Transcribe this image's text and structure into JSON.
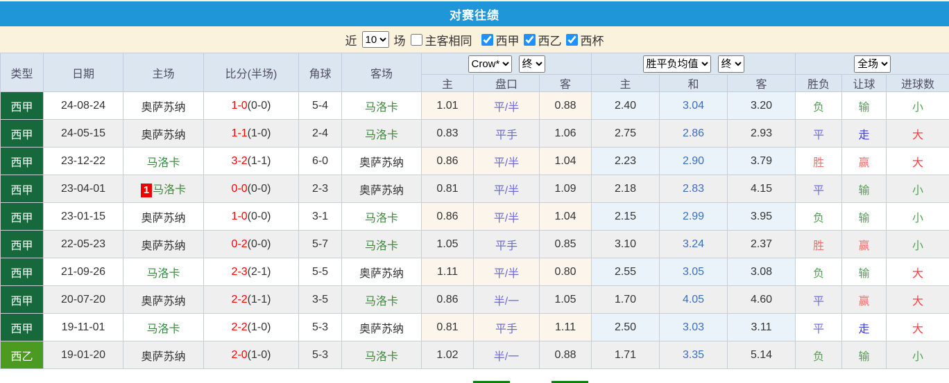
{
  "title": "对赛往绩",
  "filter": {
    "near_label": "近",
    "count_value": "10",
    "games_label": "场",
    "same_side_label": "主客相同",
    "same_side_checked": false,
    "leagues": [
      {
        "label": "西甲",
        "checked": true
      },
      {
        "label": "西乙",
        "checked": true
      },
      {
        "label": "西杯",
        "checked": true
      }
    ]
  },
  "table": {
    "static_headers": [
      "类型",
      "日期",
      "主场",
      "比分(半场)",
      "角球",
      "客场"
    ],
    "selects": {
      "company": "Crow*",
      "company_time": "终",
      "avg": "胜平负均值",
      "avg_time": "终",
      "scope": "全场"
    },
    "sub_headers": [
      "主",
      "盘口",
      "客",
      "主",
      "和",
      "客",
      "胜负",
      "让球",
      "进球数"
    ],
    "rows": [
      {
        "league": "西甲",
        "league_type": "laliga",
        "date": "24-08-24",
        "home": {
          "name": "奥萨苏纳",
          "highlight": false,
          "badge": ""
        },
        "score": "1-0",
        "half": "(0-0)",
        "corners": "5-4",
        "away": {
          "name": "马洛卡",
          "highlight": true,
          "badge": ""
        },
        "crow": {
          "home": "1.01",
          "handicap": "平/半",
          "away": "0.88"
        },
        "avg": {
          "home": "2.40",
          "draw": "3.04",
          "away": "3.20"
        },
        "result": {
          "text": "负",
          "color": "green"
        },
        "handicap_result": {
          "text": "输",
          "color": "green"
        },
        "goals_result": {
          "text": "小",
          "color": "green"
        }
      },
      {
        "league": "西甲",
        "league_type": "laliga",
        "date": "24-05-15",
        "home": {
          "name": "奥萨苏纳",
          "highlight": false,
          "badge": ""
        },
        "score": "1-1",
        "half": "(1-0)",
        "corners": "2-4",
        "away": {
          "name": "马洛卡",
          "highlight": true,
          "badge": ""
        },
        "crow": {
          "home": "0.83",
          "handicap": "平手",
          "away": "1.06"
        },
        "avg": {
          "home": "2.75",
          "draw": "2.86",
          "away": "2.93"
        },
        "result": {
          "text": "平",
          "color": "soft_blue"
        },
        "handicap_result": {
          "text": "走",
          "color": "strong_blue"
        },
        "goals_result": {
          "text": "大",
          "color": "bright_red"
        }
      },
      {
        "league": "西甲",
        "league_type": "laliga",
        "date": "23-12-22",
        "home": {
          "name": "马洛卡",
          "highlight": true,
          "badge": ""
        },
        "score": "3-2",
        "half": "(1-1)",
        "corners": "6-0",
        "away": {
          "name": "奥萨苏纳",
          "highlight": false,
          "badge": ""
        },
        "crow": {
          "home": "0.86",
          "handicap": "平/半",
          "away": "1.04"
        },
        "avg": {
          "home": "2.23",
          "draw": "2.90",
          "away": "3.79"
        },
        "result": {
          "text": "胜",
          "color": "soft_red"
        },
        "handicap_result": {
          "text": "赢",
          "color": "soft_red"
        },
        "goals_result": {
          "text": "大",
          "color": "bright_red"
        }
      },
      {
        "league": "西甲",
        "league_type": "laliga",
        "date": "23-04-01",
        "home": {
          "name": "马洛卡",
          "highlight": true,
          "badge": "1"
        },
        "score": "0-0",
        "half": "(0-0)",
        "corners": "2-3",
        "away": {
          "name": "奥萨苏纳",
          "highlight": false,
          "badge": ""
        },
        "crow": {
          "home": "0.81",
          "handicap": "平/半",
          "away": "1.09"
        },
        "avg": {
          "home": "2.18",
          "draw": "2.83",
          "away": "4.15"
        },
        "result": {
          "text": "平",
          "color": "soft_blue"
        },
        "handicap_result": {
          "text": "输",
          "color": "green"
        },
        "goals_result": {
          "text": "小",
          "color": "green"
        }
      },
      {
        "league": "西甲",
        "league_type": "laliga",
        "date": "23-01-15",
        "home": {
          "name": "奥萨苏纳",
          "highlight": false,
          "badge": ""
        },
        "score": "1-0",
        "half": "(0-0)",
        "corners": "3-1",
        "away": {
          "name": "马洛卡",
          "highlight": true,
          "badge": ""
        },
        "crow": {
          "home": "0.86",
          "handicap": "平/半",
          "away": "1.04"
        },
        "avg": {
          "home": "2.15",
          "draw": "2.99",
          "away": "3.95"
        },
        "result": {
          "text": "负",
          "color": "green"
        },
        "handicap_result": {
          "text": "输",
          "color": "green"
        },
        "goals_result": {
          "text": "小",
          "color": "green"
        }
      },
      {
        "league": "西甲",
        "league_type": "laliga",
        "date": "22-05-23",
        "home": {
          "name": "奥萨苏纳",
          "highlight": false,
          "badge": ""
        },
        "score": "0-2",
        "half": "(0-0)",
        "corners": "5-7",
        "away": {
          "name": "马洛卡",
          "highlight": true,
          "badge": ""
        },
        "crow": {
          "home": "1.05",
          "handicap": "平手",
          "away": "0.85"
        },
        "avg": {
          "home": "3.10",
          "draw": "3.24",
          "away": "2.37"
        },
        "result": {
          "text": "胜",
          "color": "soft_red"
        },
        "handicap_result": {
          "text": "赢",
          "color": "soft_red"
        },
        "goals_result": {
          "text": "小",
          "color": "green"
        }
      },
      {
        "league": "西甲",
        "league_type": "laliga",
        "date": "21-09-26",
        "home": {
          "name": "马洛卡",
          "highlight": true,
          "badge": ""
        },
        "score": "2-3",
        "half": "(2-1)",
        "corners": "5-5",
        "away": {
          "name": "奥萨苏纳",
          "highlight": false,
          "badge": ""
        },
        "crow": {
          "home": "1.11",
          "handicap": "平/半",
          "away": "0.80"
        },
        "avg": {
          "home": "2.55",
          "draw": "3.05",
          "away": "3.08"
        },
        "result": {
          "text": "负",
          "color": "green"
        },
        "handicap_result": {
          "text": "输",
          "color": "green"
        },
        "goals_result": {
          "text": "大",
          "color": "bright_red"
        }
      },
      {
        "league": "西甲",
        "league_type": "laliga",
        "date": "20-07-20",
        "home": {
          "name": "奥萨苏纳",
          "highlight": false,
          "badge": ""
        },
        "score": "2-2",
        "half": "(1-1)",
        "corners": "3-5",
        "away": {
          "name": "马洛卡",
          "highlight": true,
          "badge": ""
        },
        "crow": {
          "home": "0.86",
          "handicap": "半/一",
          "away": "1.05"
        },
        "avg": {
          "home": "1.70",
          "draw": "4.05",
          "away": "4.60"
        },
        "result": {
          "text": "平",
          "color": "soft_blue"
        },
        "handicap_result": {
          "text": "赢",
          "color": "soft_red"
        },
        "goals_result": {
          "text": "大",
          "color": "bright_red"
        }
      },
      {
        "league": "西甲",
        "league_type": "laliga",
        "date": "19-11-01",
        "home": {
          "name": "马洛卡",
          "highlight": true,
          "badge": ""
        },
        "score": "2-2",
        "half": "(1-0)",
        "corners": "5-3",
        "away": {
          "name": "奥萨苏纳",
          "highlight": false,
          "badge": ""
        },
        "crow": {
          "home": "0.81",
          "handicap": "平手",
          "away": "1.11"
        },
        "avg": {
          "home": "2.50",
          "draw": "3.03",
          "away": "3.11"
        },
        "result": {
          "text": "平",
          "color": "soft_blue"
        },
        "handicap_result": {
          "text": "走",
          "color": "strong_blue"
        },
        "goals_result": {
          "text": "大",
          "color": "bright_red"
        }
      },
      {
        "league": "西乙",
        "league_type": "laliga2",
        "date": "19-01-20",
        "home": {
          "name": "奥萨苏纳",
          "highlight": false,
          "badge": ""
        },
        "score": "2-0",
        "half": "(1-0)",
        "corners": "5-3",
        "away": {
          "name": "马洛卡",
          "highlight": true,
          "badge": ""
        },
        "crow": {
          "home": "1.02",
          "handicap": "半/一",
          "away": "0.88"
        },
        "avg": {
          "home": "1.71",
          "draw": "3.35",
          "away": "5.14"
        },
        "result": {
          "text": "负",
          "color": "green"
        },
        "handicap_result": {
          "text": "输",
          "color": "green"
        },
        "goals_result": {
          "text": "小",
          "color": "green"
        }
      }
    ]
  },
  "colors": {
    "title_bar": "#1e96d7",
    "filter_bar_bg": "#fbf2dd",
    "header_bg": "#dce6f1",
    "row_alt_bg": "#efefef",
    "crow_col_bg": "#fbf5ec",
    "avg_col_bg": "#eaf3fa",
    "laliga_badge": "#17683a",
    "laliga2_badge": "#4c9b20",
    "team_highlight": "#3a8a3d",
    "score_red": "#ff0000",
    "handicap_text": "#6b6bd6",
    "avg_draw_text": "#3a6ec4",
    "rank_badge_bg": "#ee0000",
    "checkbox_accent": "#1e90ff",
    "bottom_bar_green": "#0e7e0e",
    "outcome": {
      "soft_red": "#ee7070",
      "bright_red": "#ff3b3b",
      "soft_blue": "#7070e0",
      "strong_blue": "#3a3ae8",
      "green": "#55a055"
    }
  }
}
